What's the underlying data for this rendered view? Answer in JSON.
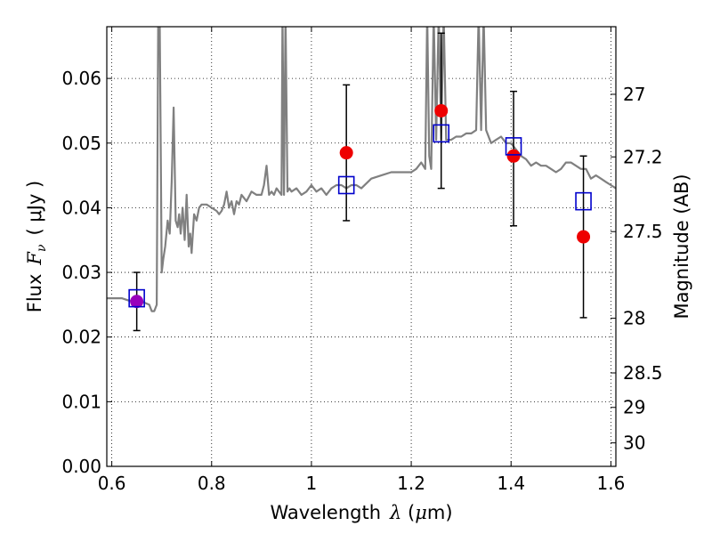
{
  "chart_data": {
    "type": "scatter",
    "xlabel": "Wavelength",
    "xlabel_math": "λ",
    "xlabel_unit_open": " (",
    "xlabel_unit_math": "μ",
    "xlabel_unit_close": "m)",
    "ylabel": "Flux",
    "ylabel_math": "F",
    "ylabel_math_sub": "ν",
    "ylabel_unit": "( μJy )",
    "y2label": "Magnitude (AB)",
    "xlim": [
      0.59,
      1.61
    ],
    "ylim": [
      0.0,
      0.068
    ],
    "grid": true,
    "xticks": [
      0.6,
      0.8,
      1.0,
      1.2,
      1.4,
      1.6
    ],
    "xtick_labels": [
      "0.6",
      "0.8",
      "1",
      "1.2",
      "1.4",
      "1.6"
    ],
    "yticks": [
      0.0,
      0.01,
      0.02,
      0.03,
      0.04,
      0.05,
      0.06
    ],
    "ytick_labels": [
      "0.00",
      "0.01",
      "0.02",
      "0.03",
      "0.04",
      "0.05",
      "0.06"
    ],
    "y2ticks": [
      27,
      27.2,
      27.5,
      28,
      28.5,
      29,
      30
    ],
    "y2tick_labels": [
      "27",
      "27.2",
      "27.5",
      "28",
      "28.5",
      "29",
      "30"
    ],
    "template_spectrum": {
      "color": "#808080",
      "x": [
        0.59,
        0.62,
        0.64,
        0.66,
        0.675,
        0.68,
        0.685,
        0.69,
        0.693,
        0.696,
        0.7,
        0.703,
        0.707,
        0.712,
        0.716,
        0.72,
        0.724,
        0.728,
        0.732,
        0.735,
        0.738,
        0.742,
        0.746,
        0.75,
        0.754,
        0.757,
        0.76,
        0.765,
        0.77,
        0.775,
        0.78,
        0.79,
        0.8,
        0.81,
        0.815,
        0.82,
        0.825,
        0.83,
        0.835,
        0.84,
        0.845,
        0.85,
        0.855,
        0.86,
        0.87,
        0.88,
        0.89,
        0.9,
        0.905,
        0.91,
        0.915,
        0.92,
        0.925,
        0.93,
        0.935,
        0.94,
        0.942,
        0.945,
        0.948,
        0.952,
        0.956,
        0.96,
        0.97,
        0.98,
        0.99,
        1.0,
        1.01,
        1.02,
        1.03,
        1.04,
        1.05,
        1.06,
        1.07,
        1.08,
        1.09,
        1.1,
        1.12,
        1.14,
        1.16,
        1.18,
        1.2,
        1.21,
        1.22,
        1.228,
        1.232,
        1.236,
        1.24,
        1.245,
        1.25,
        1.255,
        1.26,
        1.265,
        1.27,
        1.28,
        1.29,
        1.3,
        1.31,
        1.32,
        1.33,
        1.335,
        1.34,
        1.345,
        1.35,
        1.36,
        1.37,
        1.38,
        1.39,
        1.4,
        1.41,
        1.42,
        1.43,
        1.44,
        1.45,
        1.46,
        1.47,
        1.48,
        1.49,
        1.5,
        1.51,
        1.52,
        1.53,
        1.54,
        1.55,
        1.56,
        1.57,
        1.58,
        1.59,
        1.6,
        1.61
      ],
      "y": [
        0.026,
        0.026,
        0.0255,
        0.0255,
        0.025,
        0.024,
        0.024,
        0.025,
        0.07,
        0.07,
        0.03,
        0.032,
        0.034,
        0.038,
        0.036,
        0.044,
        0.0555,
        0.038,
        0.037,
        0.039,
        0.036,
        0.04,
        0.035,
        0.042,
        0.034,
        0.036,
        0.033,
        0.039,
        0.038,
        0.04,
        0.0405,
        0.0405,
        0.04,
        0.0395,
        0.039,
        0.0395,
        0.0405,
        0.0425,
        0.04,
        0.041,
        0.039,
        0.041,
        0.0405,
        0.042,
        0.041,
        0.0425,
        0.042,
        0.042,
        0.0435,
        0.0465,
        0.042,
        0.0425,
        0.042,
        0.043,
        0.0425,
        0.042,
        0.07,
        0.042,
        0.07,
        0.0425,
        0.043,
        0.0425,
        0.043,
        0.042,
        0.0425,
        0.0435,
        0.0425,
        0.043,
        0.042,
        0.043,
        0.0435,
        0.0435,
        0.043,
        0.0435,
        0.0435,
        0.043,
        0.0445,
        0.045,
        0.0455,
        0.0455,
        0.0455,
        0.046,
        0.047,
        0.046,
        0.07,
        0.048,
        0.046,
        0.07,
        0.0505,
        0.07,
        0.0505,
        0.07,
        0.0505,
        0.0505,
        0.051,
        0.051,
        0.0515,
        0.0515,
        0.052,
        0.07,
        0.052,
        0.07,
        0.052,
        0.05,
        0.0505,
        0.051,
        0.05,
        0.05,
        0.049,
        0.048,
        0.0475,
        0.0465,
        0.047,
        0.0465,
        0.0465,
        0.046,
        0.0455,
        0.046,
        0.047,
        0.047,
        0.0465,
        0.046,
        0.046,
        0.0445,
        0.045,
        0.0445,
        0.044,
        0.0435,
        0.043
      ]
    },
    "series": [
      {
        "marker": "open-square",
        "color": "#0000cc",
        "x": [
          0.65,
          1.07,
          1.26,
          1.405,
          1.545
        ],
        "y": [
          0.026,
          0.0435,
          0.0515,
          0.0495,
          0.041
        ]
      },
      {
        "marker": "filled-circle",
        "color": "#ee0000",
        "x": [
          0.65,
          1.07,
          1.26,
          1.405,
          1.545
        ],
        "y": [
          0.0255,
          0.0485,
          0.055,
          0.048,
          0.0355
        ],
        "err_low": [
          0.021,
          0.038,
          0.043,
          0.0372,
          0.023
        ],
        "err_high": [
          0.03,
          0.059,
          0.067,
          0.058,
          0.048
        ]
      }
    ],
    "first_point_color": "#9900bb"
  }
}
